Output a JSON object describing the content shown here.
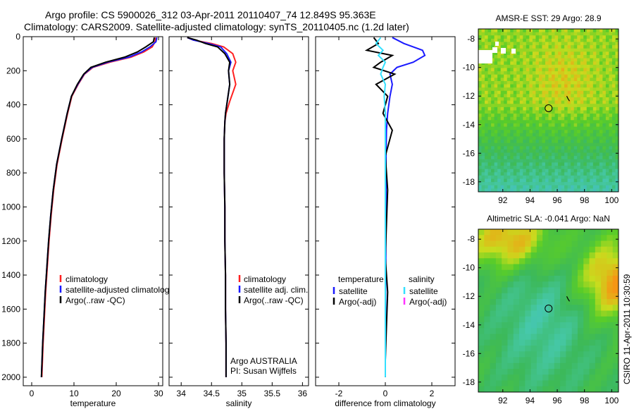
{
  "header": {
    "line1": "Argo profile: CS 5900026_312 03-Apr-2011 20110407_74 12.849S 95.363E",
    "line2": "Climatology: CARS2009. Satellite-adjusted climatology: synTS_20110405.nc (1.2d later)"
  },
  "side_label": "CSIRO 11-Apr-2011 10:30:59",
  "colors": {
    "climatology": "#ff2020",
    "satellite": "#1a1aff",
    "argo": "#000000",
    "salinity_satellite": "#33e0ff",
    "salinity_argo": "#ff33ff"
  },
  "chart_data": [
    {
      "type": "line",
      "xlabel": "temperature",
      "xlim": [
        -2,
        31
      ],
      "ylim": [
        0,
        2050
      ],
      "y_inverted": true,
      "xticks": [
        0,
        10,
        20,
        30
      ],
      "yticks": [
        0,
        200,
        400,
        600,
        800,
        1000,
        1200,
        1400,
        1600,
        1800,
        2000
      ],
      "series": [
        {
          "name": "climatology",
          "color": "#ff2020",
          "x": [
            29.3,
            29.2,
            28.5,
            26.5,
            23.5,
            18.5,
            14.5,
            12.5,
            11.0,
            9.5,
            8.5,
            7.2,
            6.0,
            5.2,
            4.6,
            4.1,
            3.7,
            3.3,
            2.7,
            2.4
          ],
          "y": [
            5,
            30,
            60,
            90,
            120,
            150,
            180,
            220,
            280,
            350,
            450,
            600,
            750,
            900,
            1050,
            1200,
            1350,
            1500,
            1800,
            2000
          ]
        },
        {
          "name": "satellite-adjusted climatology",
          "color": "#1a1aff",
          "x": [
            29.6,
            29.4,
            28.0,
            26.0,
            23.0,
            18.0,
            14.3,
            12.4,
            10.9,
            9.4,
            8.4,
            7.1,
            5.9,
            5.1,
            4.5,
            4.0,
            3.6,
            3.2,
            2.6,
            2.3
          ],
          "y": [
            5,
            30,
            60,
            90,
            120,
            150,
            180,
            220,
            280,
            350,
            450,
            600,
            750,
            900,
            1050,
            1200,
            1350,
            1500,
            1800,
            2000
          ]
        },
        {
          "name": "Argo(..raw -QC)",
          "color": "#000000",
          "x": [
            29.0,
            28.8,
            27.0,
            25.0,
            22.0,
            17.5,
            14.0,
            12.3,
            10.8,
            9.4,
            8.4,
            7.1,
            5.9,
            5.1,
            4.5,
            4.0,
            3.6,
            3.2,
            2.6,
            2.3
          ],
          "y": [
            5,
            30,
            60,
            90,
            120,
            150,
            180,
            220,
            280,
            350,
            450,
            600,
            750,
            900,
            1050,
            1200,
            1350,
            1500,
            1800,
            2000
          ]
        }
      ],
      "legend": {
        "position": "bottom-right",
        "entries": [
          "climatology",
          "satellite-adjusted climatology",
          "Argo(..raw -QC)"
        ]
      }
    },
    {
      "type": "line",
      "xlabel": "salinity",
      "xlim": [
        33.8,
        36.1
      ],
      "ylim": [
        0,
        2050
      ],
      "y_inverted": true,
      "xticks": [
        34,
        34.5,
        35,
        35.5,
        36
      ],
      "xticklabels": [
        "34",
        "34.5",
        "35",
        "35.5",
        "36"
      ],
      "series": [
        {
          "name": "climatology",
          "color": "#ff2020",
          "x": [
            34.1,
            34.2,
            34.5,
            34.7,
            34.85,
            34.9,
            34.85,
            34.9,
            34.8,
            34.74,
            34.72,
            34.71,
            34.71,
            34.72,
            34.72,
            34.73,
            34.73,
            34.74,
            34.74,
            34.74
          ],
          "y": [
            5,
            20,
            40,
            60,
            100,
            150,
            200,
            280,
            380,
            450,
            500,
            600,
            800,
            1000,
            1200,
            1400,
            1600,
            1800,
            1900,
            2000
          ]
        },
        {
          "name": "satellite adj. clim.",
          "color": "#1a1aff",
          "x": [
            34.1,
            34.2,
            34.45,
            34.65,
            34.75,
            34.82,
            34.78,
            34.8,
            34.76,
            34.73,
            34.72,
            34.71,
            34.71,
            34.72,
            34.72,
            34.73,
            34.73,
            34.74,
            34.74,
            34.74
          ],
          "y": [
            5,
            20,
            40,
            60,
            100,
            150,
            200,
            280,
            380,
            450,
            500,
            600,
            800,
            1000,
            1200,
            1400,
            1600,
            1800,
            1900,
            2000
          ]
        },
        {
          "name": "Argo(..raw -QC)",
          "color": "#000000",
          "x": [
            34.1,
            34.25,
            34.4,
            34.6,
            34.72,
            34.8,
            34.78,
            34.8,
            34.76,
            34.73,
            34.72,
            34.71,
            34.71,
            34.72,
            34.72,
            34.73,
            34.73,
            34.74,
            34.74,
            34.74
          ],
          "y": [
            5,
            20,
            40,
            60,
            100,
            150,
            200,
            280,
            380,
            450,
            500,
            600,
            800,
            1000,
            1200,
            1400,
            1600,
            1800,
            1900,
            2000
          ]
        }
      ],
      "legend": {
        "position": "bottom-right",
        "entries": [
          "climatology",
          "satellite adj. clim.",
          "Argo(..raw -QC)"
        ]
      },
      "annotation": [
        "Argo AUSTRALIA",
        "PI: Susan Wijffels"
      ]
    },
    {
      "type": "line",
      "xlabel": "difference from climatology",
      "xlim": [
        -3,
        3
      ],
      "ylim": [
        0,
        2050
      ],
      "y_inverted": true,
      "xticks": [
        -2,
        0,
        2
      ],
      "series": [
        {
          "name": "temperature satellite",
          "color": "#1a1aff",
          "x": [
            0.3,
            0.8,
            1.6,
            1.7,
            1.2,
            0.5,
            0.2,
            0.3,
            0.2,
            0.1,
            0.05,
            0.03,
            0.03,
            0.02,
            0.02,
            0.01,
            0.01,
            0.0,
            0.0
          ],
          "y": [
            5,
            40,
            80,
            110,
            150,
            180,
            220,
            280,
            350,
            450,
            550,
            700,
            900,
            1100,
            1300,
            1500,
            1700,
            1900,
            2000
          ]
        },
        {
          "name": "temperature Argo(-adj)",
          "color": "#000000",
          "x": [
            -0.5,
            -0.3,
            -0.8,
            0.3,
            -0.2,
            -0.5,
            0.4,
            -0.4,
            0.1,
            -0.1,
            0.3,
            0.0,
            0.1,
            0.05,
            0.0,
            0.1,
            0.05,
            0.0,
            0.0
          ],
          "y": [
            5,
            40,
            80,
            110,
            150,
            180,
            220,
            280,
            350,
            450,
            550,
            700,
            900,
            1100,
            1300,
            1500,
            1700,
            1900,
            2000
          ]
        },
        {
          "name": "salinity satellite",
          "color": "#33e0ff",
          "x": [
            -0.2,
            -0.4,
            -0.1,
            -0.3,
            0.0,
            -0.1,
            -0.2,
            0.0,
            -0.05,
            0.0,
            0.0,
            0.0,
            0.0,
            0.0,
            0.0,
            0.0,
            0.0,
            0.0,
            0.0
          ],
          "y": [
            5,
            40,
            80,
            110,
            150,
            180,
            220,
            280,
            350,
            450,
            550,
            700,
            900,
            1100,
            1300,
            1500,
            1700,
            1900,
            2000
          ]
        }
      ],
      "legend": {
        "position": "bottom",
        "groups": [
          {
            "title": "temperature",
            "entries": [
              "satellite",
              "Argo(-adj)"
            ],
            "colors": [
              "#1a1aff",
              "#000000"
            ]
          },
          {
            "title": "salinity",
            "entries": [
              "satellite",
              "Argo(-adj)"
            ],
            "colors": [
              "#33e0ff",
              "#ff33ff"
            ]
          }
        ]
      }
    },
    {
      "type": "heatmap",
      "title": "AMSR-E SST: 29 Argo: 28.9",
      "xlim": [
        90.2,
        100.5
      ],
      "ylim": [
        -18.7,
        -7.3
      ],
      "xticks": [
        92,
        94,
        96,
        98,
        100
      ],
      "yticks": [
        -8,
        -10,
        -12,
        -14,
        -16,
        -18
      ],
      "float_position": [
        95.363,
        -12.849
      ]
    },
    {
      "type": "heatmap",
      "title": "Altimetric SLA: -0.041 Argo: NaN",
      "xlim": [
        90.2,
        100.5
      ],
      "ylim": [
        -18.7,
        -7.3
      ],
      "xticks": [
        92,
        94,
        96,
        98,
        100
      ],
      "yticks": [
        -8,
        -10,
        -12,
        -14,
        -16,
        -18
      ],
      "float_position": [
        95.363,
        -12.849
      ]
    }
  ]
}
